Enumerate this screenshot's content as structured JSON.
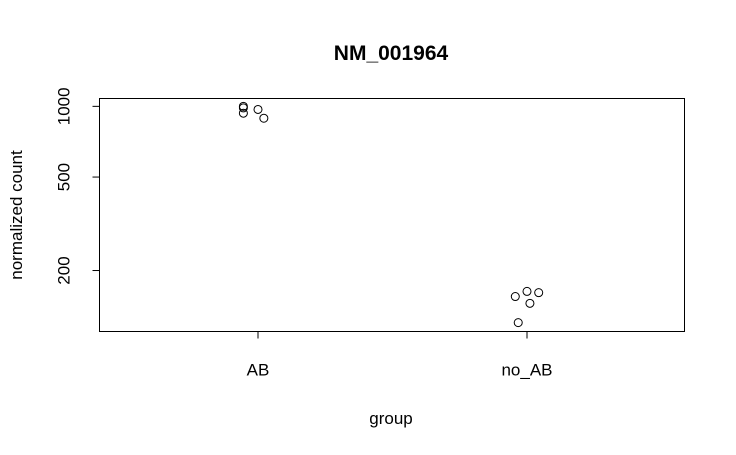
{
  "chart_data": {
    "type": "scatter",
    "title": "NM_001964",
    "xlabel": "group",
    "ylabel": "normalized count",
    "categories": [
      "AB",
      "no_AB"
    ],
    "y_scale": "log",
    "ylim": [
      110,
      1080
    ],
    "y_ticks": [
      200,
      500,
      1000
    ],
    "y_tick_labels": [
      "200",
      "500",
      "1000"
    ],
    "grid": false,
    "series": [
      {
        "category": "AB",
        "points": [
          {
            "jitter": -0.05,
            "y": 1000
          },
          {
            "jitter": -0.05,
            "y": 985
          },
          {
            "jitter": -0.05,
            "y": 935
          },
          {
            "jitter": 0.0,
            "y": 970
          },
          {
            "jitter": 0.02,
            "y": 890
          }
        ]
      },
      {
        "category": "no_AB",
        "points": [
          {
            "jitter": -0.04,
            "y": 155
          },
          {
            "jitter": 0.0,
            "y": 163
          },
          {
            "jitter": 0.04,
            "y": 161
          },
          {
            "jitter": 0.01,
            "y": 145
          },
          {
            "jitter": -0.03,
            "y": 120
          }
        ]
      }
    ]
  }
}
